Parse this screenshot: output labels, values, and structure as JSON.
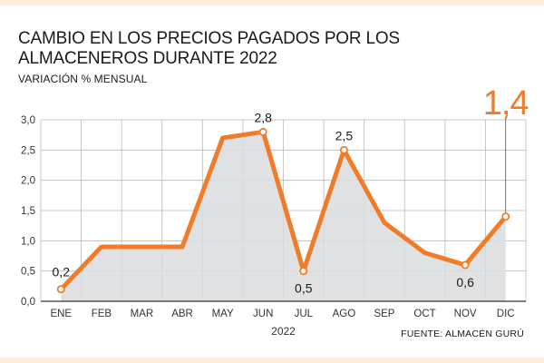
{
  "header": {
    "title": "CAMBIO EN LOS PRECIOS PAGADOS POR LOS ALMACENEROS DURANTE 2022",
    "subtitle": "VARIACIÓN % MENSUAL"
  },
  "footer": {
    "source": "FUENTE: ALMACÉN GURÚ"
  },
  "colors": {
    "line": "#f07c2a",
    "area": "#d9dcde",
    "grid": "#b9b9b9",
    "axis": "#333333"
  },
  "chart_data": {
    "type": "area",
    "title": "CAMBIO EN LOS PRECIOS PAGADOS POR LOS ALMACENEROS DURANTE 2022",
    "subtitle": "VARIACIÓN % MENSUAL",
    "xlabel": "2022",
    "ylabel": "",
    "categories": [
      "ENE",
      "FEB",
      "MAR",
      "ABR",
      "MAY",
      "JUN",
      "JUL",
      "AGO",
      "SEP",
      "OCT",
      "NOV",
      "DIC"
    ],
    "series": [
      {
        "values": [
          0.2,
          0.9,
          0.9,
          0.9,
          2.7,
          2.8,
          0.5,
          2.5,
          1.3,
          0.8,
          0.6,
          1.4
        ]
      }
    ],
    "ylim": [
      0,
      3
    ],
    "yticks": [
      "0,0",
      "0,5",
      "1,0",
      "1,5",
      "2,0",
      "2,5",
      "3,0"
    ],
    "grid": true,
    "data_labels": [
      {
        "index": 0,
        "text": "0,2"
      },
      {
        "index": 5,
        "text": "2,8"
      },
      {
        "index": 6,
        "text": "0,5"
      },
      {
        "index": 7,
        "text": "2,5"
      },
      {
        "index": 10,
        "text": "0,6"
      },
      {
        "index": 11,
        "text": "1,4",
        "highlight": true
      }
    ]
  }
}
